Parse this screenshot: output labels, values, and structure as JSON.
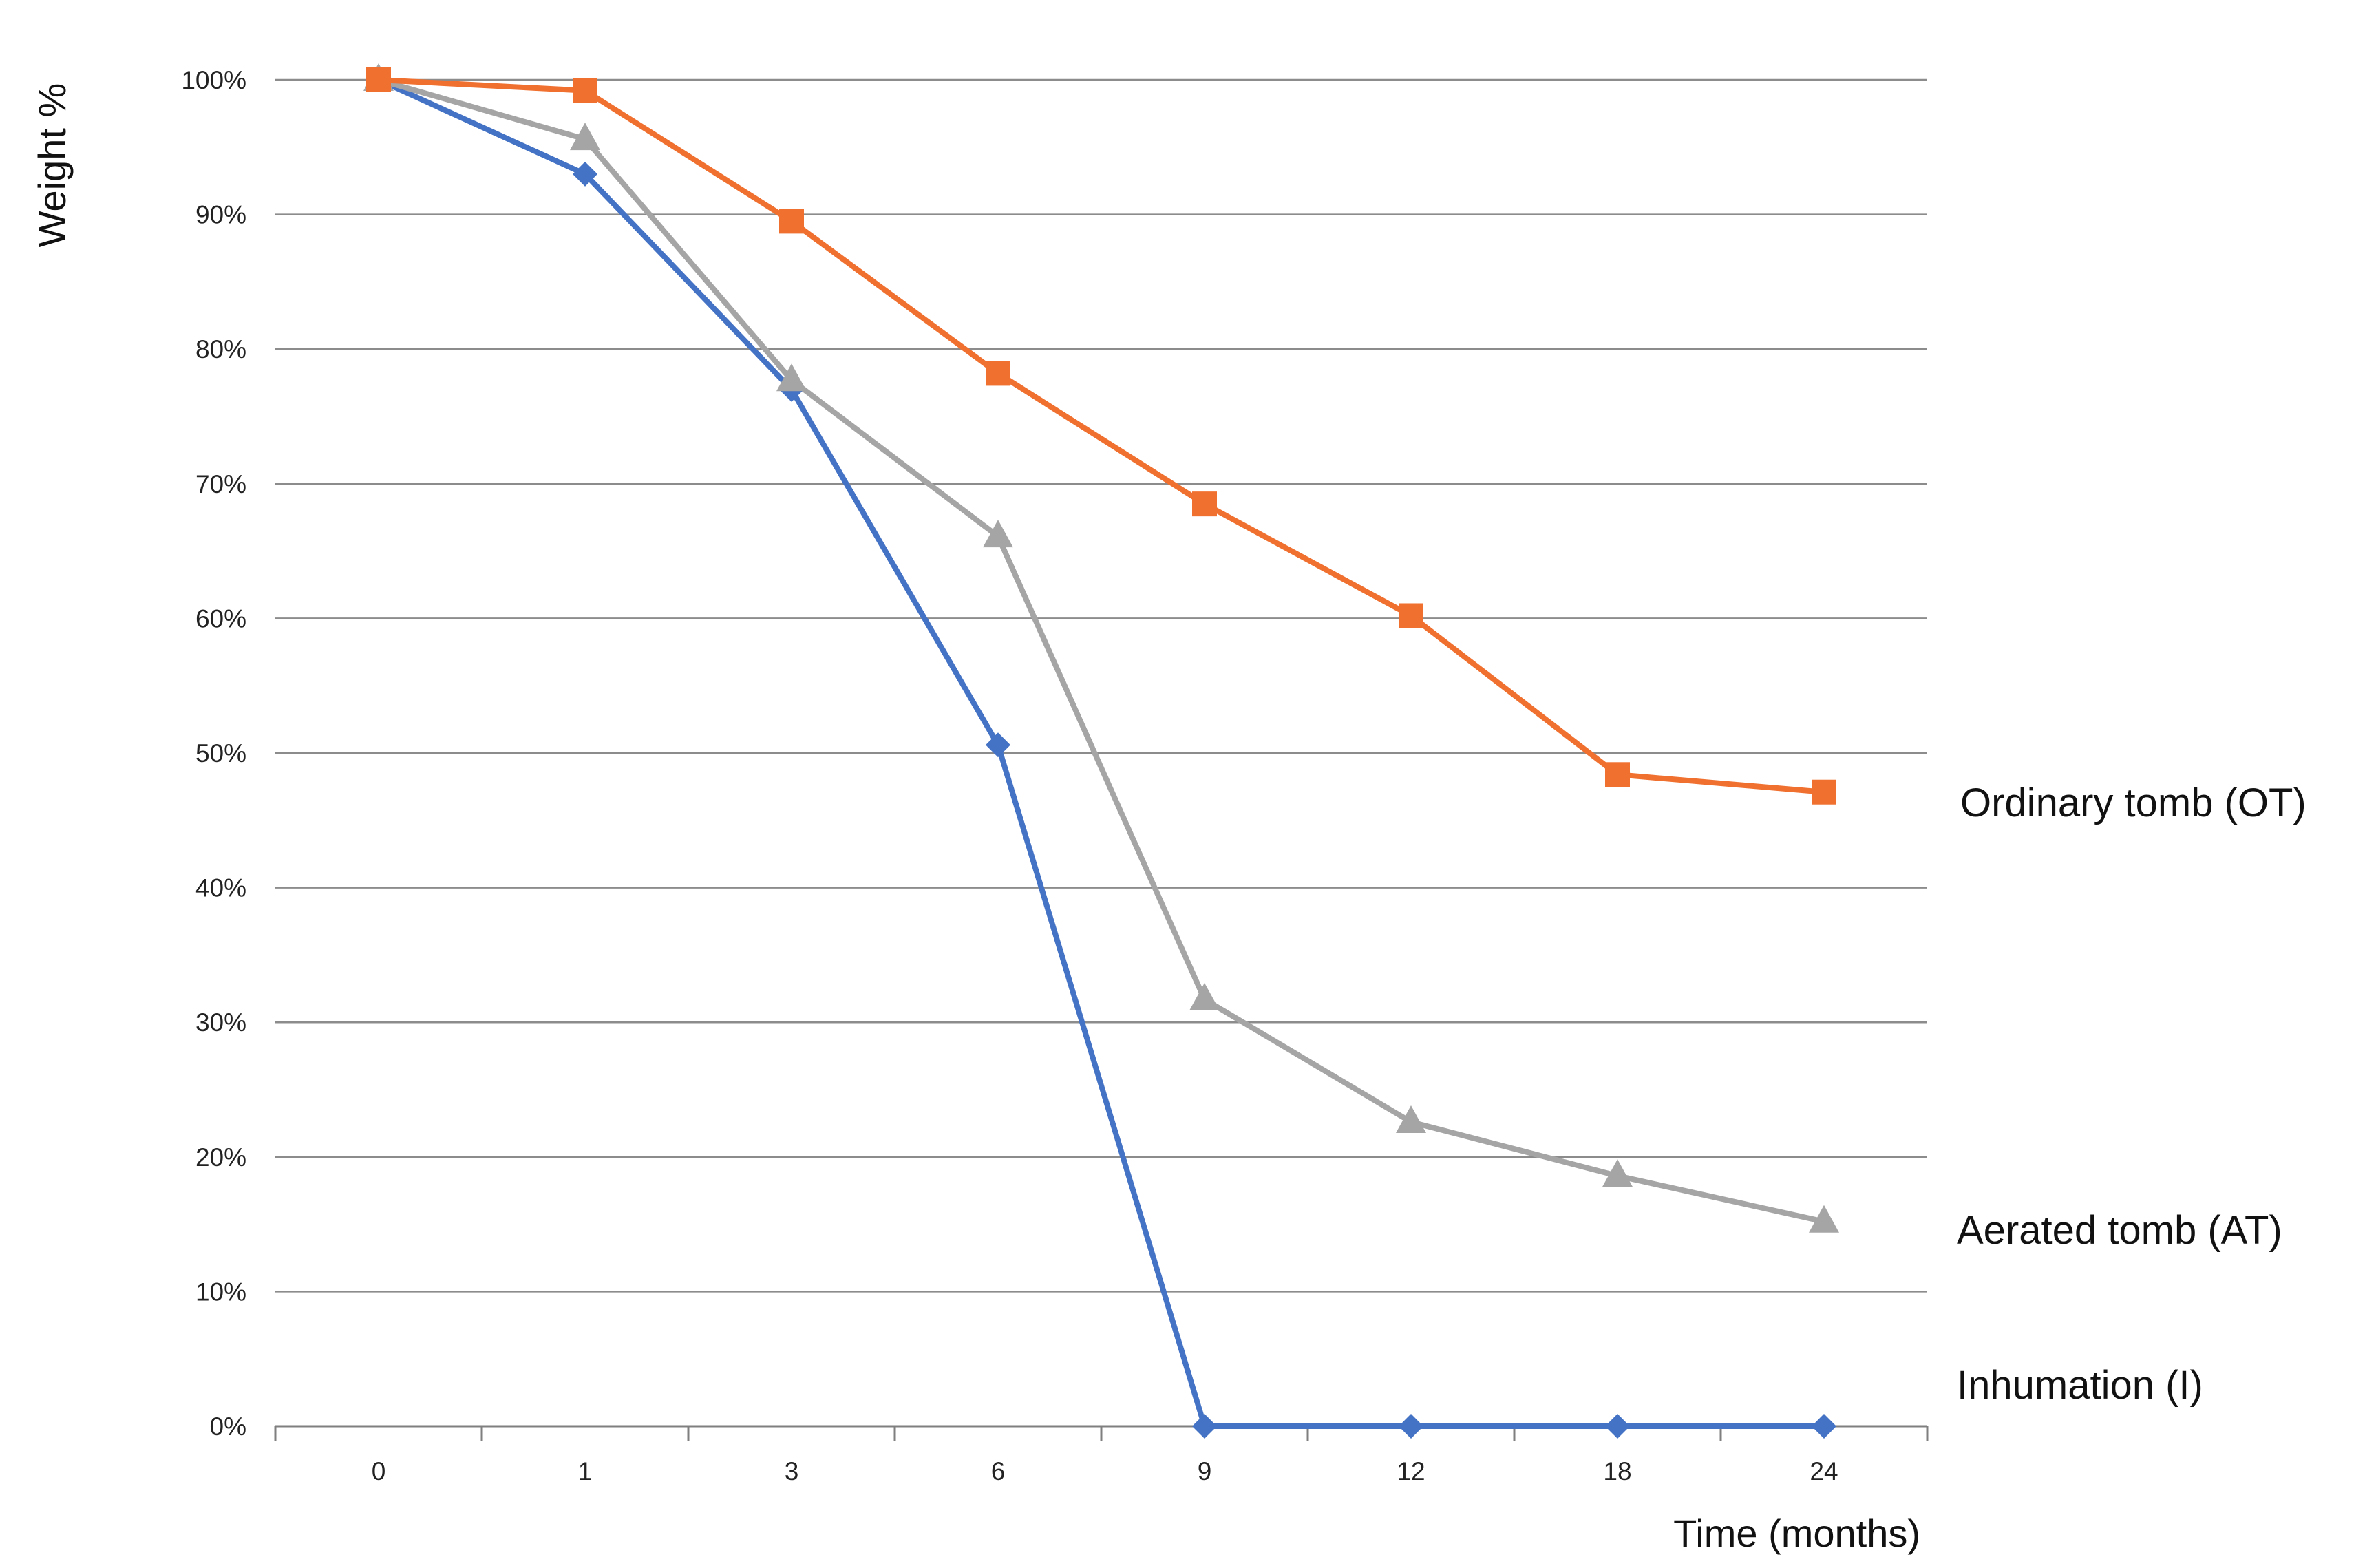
{
  "chart_data": {
    "type": "line",
    "title": "",
    "ylabel": "Weight %",
    "xlabel": "Time (months)",
    "categories": [
      "0",
      "1",
      "3",
      "6",
      "9",
      "12",
      "18",
      "24"
    ],
    "ylim": [
      0,
      100
    ],
    "yticks": [
      0,
      10,
      20,
      30,
      40,
      50,
      60,
      70,
      80,
      90,
      100
    ],
    "ytick_labels": [
      "0%",
      "10%",
      "20%",
      "30%",
      "40%",
      "50%",
      "60%",
      "70%",
      "80%",
      "90%",
      "100%"
    ],
    "grid": true,
    "legend": "none",
    "series": [
      {
        "name": "Ordinary tomb (OT)",
        "color": "#f07030",
        "marker": "square",
        "values": [
          100,
          99.2,
          89.5,
          78.2,
          68.5,
          60.2,
          48.4,
          47.1
        ]
      },
      {
        "name": "Aerated tomb (AT)",
        "color": "#a5a5a5",
        "marker": "triangle",
        "values": [
          100,
          95.6,
          77.7,
          66.1,
          31.7,
          22.6,
          18.6,
          15.2
        ]
      },
      {
        "name": "Inhumation (I)",
        "color": "#4472c4",
        "marker": "diamond",
        "values": [
          100,
          93.0,
          77.0,
          50.6,
          0,
          0,
          0,
          0
        ]
      }
    ]
  }
}
